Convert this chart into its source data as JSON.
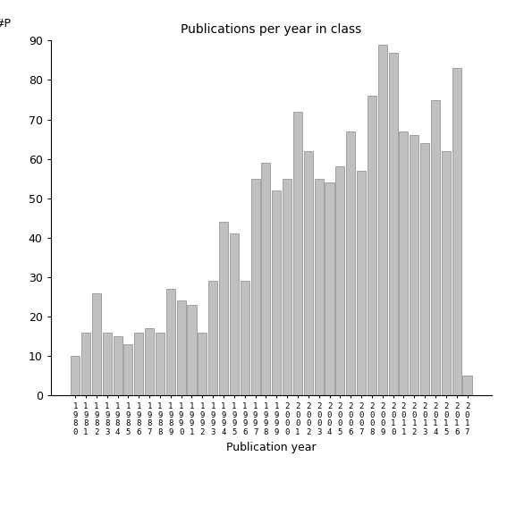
{
  "title": "Publications per year in class",
  "xlabel": "Publication year",
  "ylabel": "#P",
  "bar_color": "#c0c0c0",
  "bar_edgecolor": "#888888",
  "background_color": "#ffffff",
  "ylim": [
    0,
    90
  ],
  "yticks": [
    0,
    10,
    20,
    30,
    40,
    50,
    60,
    70,
    80,
    90
  ],
  "years": [
    1980,
    1981,
    1982,
    1983,
    1984,
    1985,
    1986,
    1987,
    1988,
    1989,
    1990,
    1991,
    1992,
    1993,
    1994,
    1995,
    1996,
    1997,
    1998,
    1999,
    2000,
    2001,
    2002,
    2003,
    2004,
    2005,
    2006,
    2007,
    2008,
    2009,
    2010,
    2011,
    2012,
    2013,
    2014,
    2015,
    2016,
    2017
  ],
  "values": [
    10,
    16,
    26,
    16,
    15,
    13,
    16,
    17,
    16,
    27,
    24,
    23,
    16,
    29,
    44,
    41,
    29,
    55,
    59,
    52,
    55,
    72,
    62,
    55,
    54,
    58,
    67,
    57,
    76,
    89,
    87,
    67,
    66,
    64,
    75,
    62,
    83,
    5
  ]
}
